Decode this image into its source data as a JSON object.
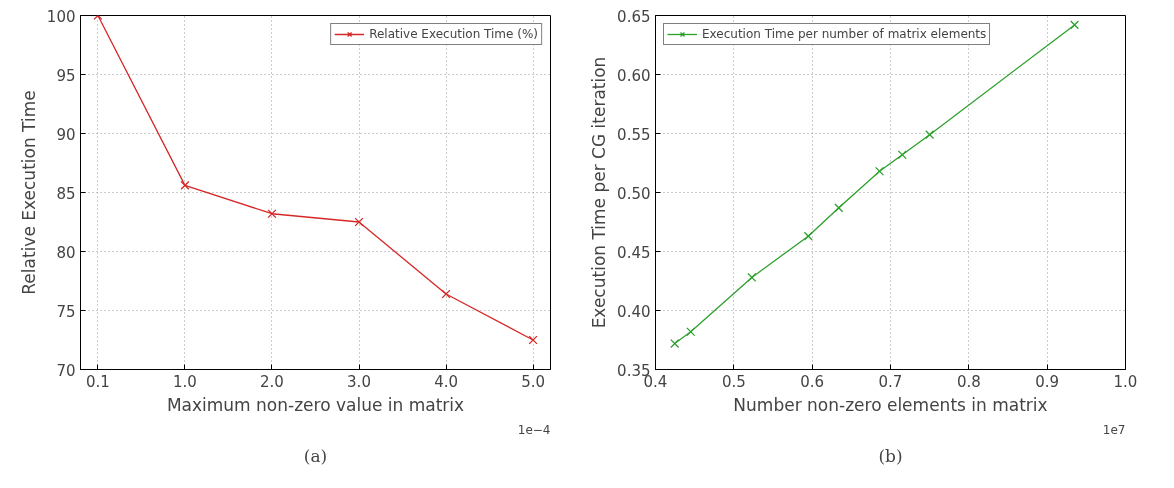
{
  "chart_data": [
    {
      "type": "line",
      "xlabel": "Maximum non-zero value in matrix",
      "ylabel": "Relative Execution Time",
      "categories": [
        "0.1",
        "1.0",
        "2.0",
        "3.0",
        "4.0",
        "5.0"
      ],
      "series": [
        {
          "name": "Relative Execution Time (%)",
          "color": "#d62728",
          "values": [
            100,
            85.6,
            83.2,
            82.5,
            76.4,
            72.5
          ]
        }
      ],
      "ylim": [
        70,
        100
      ],
      "yticks": [
        70,
        75,
        80,
        85,
        90,
        95,
        100
      ],
      "grid": true,
      "legend": "top right",
      "marker": "cross",
      "line_style": "solid",
      "annotations": [
        "1e−4",
        "(a)"
      ]
    },
    {
      "type": "line",
      "xlabel": "Number non-zero elements in matrix",
      "ylabel": "Execution Time per CG iteration",
      "x": [
        0.4245,
        0.445,
        0.523,
        0.595,
        0.634,
        0.686,
        0.715,
        0.75,
        0.935
      ],
      "series": [
        {
          "name": "Execution Time per number of matrix elements",
          "color": "#2ca02c",
          "values": [
            0.372,
            0.382,
            0.428,
            0.463,
            0.487,
            0.518,
            0.532,
            0.549,
            0.642
          ]
        }
      ],
      "xlim": [
        0.4,
        1.0
      ],
      "xticks": [
        {
          "value": 0.4,
          "label": "0.4"
        },
        {
          "value": 0.5,
          "label": "0.5"
        },
        {
          "value": 0.6,
          "label": "0.6"
        },
        {
          "value": 0.7,
          "label": "0.7"
        },
        {
          "value": 0.8,
          "label": "0.8"
        },
        {
          "value": 0.9,
          "label": "0.9"
        },
        {
          "value": 1.0,
          "label": "1.0"
        }
      ],
      "ylim": [
        0.35,
        0.65
      ],
      "yticks": [
        {
          "value": 0.35,
          "label": "0.35"
        },
        {
          "value": 0.4,
          "label": "0.40"
        },
        {
          "value": 0.45,
          "label": "0.45"
        },
        {
          "value": 0.5,
          "label": "0.50"
        },
        {
          "value": 0.55,
          "label": "0.55"
        },
        {
          "value": 0.6,
          "label": "0.60"
        },
        {
          "value": 0.65,
          "label": "0.65"
        }
      ],
      "grid": true,
      "legend": "top left",
      "marker": "cross",
      "line_style": "solid",
      "annotations": [
        "1e7",
        "(b)"
      ]
    }
  ]
}
